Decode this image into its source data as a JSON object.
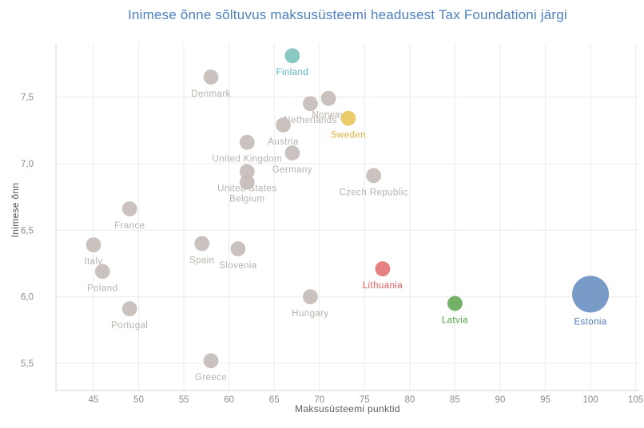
{
  "title": "Inimese õnne sõltuvus maksusüsteemi headusest Tax Foundationi järgi",
  "chart_data": {
    "type": "scatter",
    "title": "Inimese õnne sõltuvus maksusüsteemi headusest Tax Foundationi järgi",
    "xlabel": "Maksusüsteemi punktid",
    "ylabel": "Inimese õnn",
    "xlim": [
      40.9,
      105.5
    ],
    "ylim": [
      5.2,
      7.95
    ],
    "grid": true,
    "x_ticks": [
      45,
      50,
      55,
      60,
      65,
      70,
      75,
      80,
      85,
      90,
      95,
      100,
      105
    ],
    "y_ticks": [
      {
        "label": "5,5",
        "value": 5.5
      },
      {
        "label": "6,0",
        "value": 6.0
      },
      {
        "label": "6,5",
        "value": 6.5
      },
      {
        "label": "7,0",
        "value": 7.0
      },
      {
        "label": "7,5",
        "value": 7.5
      }
    ],
    "colors": {
      "title": "#4d7fbe",
      "grid": "#ebebeb",
      "axis_line": "#d8d5d3",
      "tick_label": "#8e8a88",
      "axis_title": "#615c59",
      "default_dot": "#c5bdb8",
      "default_label": "#b8b1ac"
    },
    "points": [
      {
        "name": "Finland",
        "x": 67,
        "y": 7.81,
        "dot_color": "#80c4bc",
        "label_color": "#58b7bb"
      },
      {
        "name": "Denmark",
        "x": 58,
        "y": 7.65
      },
      {
        "name": "Norway",
        "x": 71,
        "y": 7.49
      },
      {
        "name": "Netherlands",
        "x": 69,
        "y": 7.45
      },
      {
        "name": "Sweden",
        "x": 73.2,
        "y": 7.34,
        "dot_color": "#e9c95f",
        "label_color": "#dfb23c"
      },
      {
        "name": "Austria",
        "x": 66,
        "y": 7.29
      },
      {
        "name": "United Kingdom",
        "x": 62,
        "y": 7.16
      },
      {
        "name": "Germany",
        "x": 67,
        "y": 7.08
      },
      {
        "name": "United States",
        "x": 62,
        "y": 6.94
      },
      {
        "name": "Czech Republic",
        "x": 76,
        "y": 6.91
      },
      {
        "name": "Belgium",
        "x": 62,
        "y": 6.86
      },
      {
        "name": "France",
        "x": 49,
        "y": 6.66
      },
      {
        "name": "Spain",
        "x": 57,
        "y": 6.4
      },
      {
        "name": "Italy",
        "x": 45,
        "y": 6.39
      },
      {
        "name": "Slovenia",
        "x": 61,
        "y": 6.36
      },
      {
        "name": "Lithuania",
        "x": 77,
        "y": 6.21,
        "dot_color": "#e57576",
        "label_color": "#e05c5c"
      },
      {
        "name": "Poland",
        "x": 46,
        "y": 6.19
      },
      {
        "name": "Estonia",
        "x": 100,
        "y": 6.02,
        "dot_color": "#6e92c3",
        "label_color": "#4c7db8",
        "r": 23
      },
      {
        "name": "Hungary",
        "x": 69,
        "y": 6.0
      },
      {
        "name": "Latvia",
        "x": 85,
        "y": 5.95,
        "dot_color": "#68a95a",
        "label_color": "#57a04a"
      },
      {
        "name": "Portugal",
        "x": 49,
        "y": 5.91
      },
      {
        "name": "Greece",
        "x": 58,
        "y": 5.52
      }
    ]
  }
}
